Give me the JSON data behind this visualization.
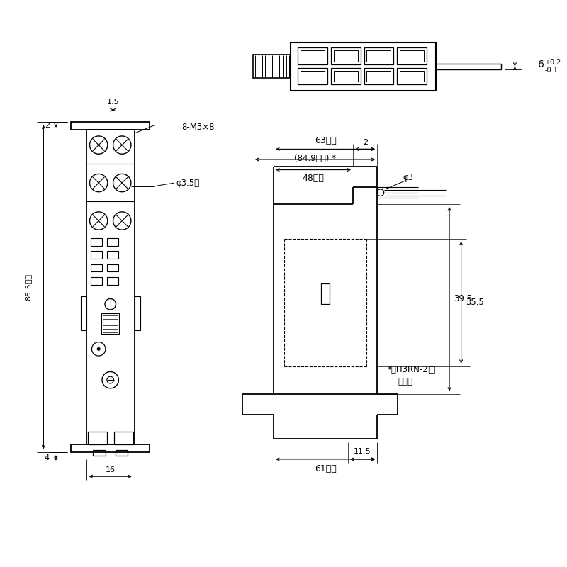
{
  "bg_color": "#ffffff",
  "line_color": "#000000",
  "figsize": [
    8.0,
    8.0
  ],
  "dpi": 100,
  "annotations": {
    "dim_1_5": "1.5",
    "dim_8M3x8": "8-M3×8",
    "dim_phi3_5": "φ3.5穴",
    "dim_2_left": "2",
    "dim_85_5": "85.5以下",
    "dim_4": "4",
    "dim_16": "16",
    "dim_63": "63以下",
    "dim_84_9": "(84.9以下) *",
    "dim_48": "48以下",
    "dim_2_right": "2",
    "dim_phi3": "φ3",
    "dim_39_5": "39.5",
    "dim_35_5": "35.5",
    "dim_61": "61以下",
    "dim_11_5": "11.5",
    "dim_6": "6",
    "dim_6_tol_plus": "+0.2",
    "dim_6_tol_minus": "-0.1",
    "note_line1": "*形H3RN-2□",
    "note_line2": "装着時"
  }
}
